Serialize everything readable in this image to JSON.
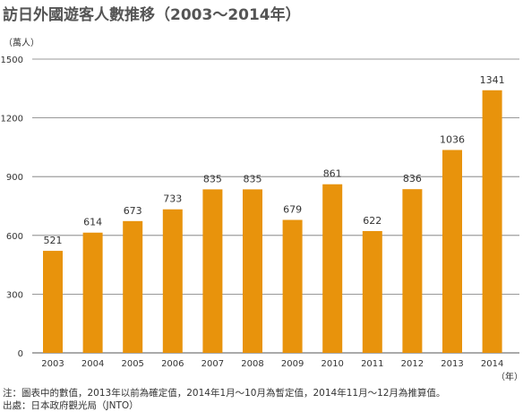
{
  "chart_data": {
    "type": "bar",
    "title": "訪日外國遊客人數推移（2003～2014年）",
    "ylabel": "（萬人）",
    "xlabel": "（年）",
    "categories": [
      "2003",
      "2004",
      "2005",
      "2006",
      "2007",
      "2008",
      "2009",
      "2010",
      "2011",
      "2012",
      "2013",
      "2014"
    ],
    "values": [
      521,
      614,
      673,
      733,
      835,
      835,
      679,
      861,
      622,
      836,
      1036,
      1341
    ],
    "ylim": [
      0,
      1500
    ],
    "yticks": [
      "0",
      "300",
      "600",
      "900",
      "1200",
      "1500"
    ],
    "grid": true,
    "bar_color": "#E8930C"
  },
  "notes": {
    "line1": "注：圖表中的數值，2013年以前為確定值，2014年1月～10月為暫定值，2014年11月～12月為推算值。",
    "line2": "出處：日本政府觀光局（JNTO）"
  }
}
